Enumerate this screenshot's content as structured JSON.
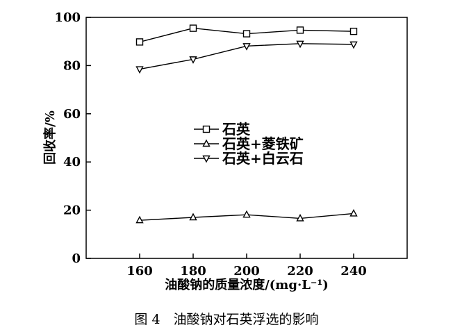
{
  "chart_data": {
    "type": "line",
    "x": [
      160,
      180,
      200,
      220,
      240
    ],
    "xlim": [
      140,
      260
    ],
    "ylim": [
      0,
      100
    ],
    "xticks": [
      160,
      180,
      200,
      220,
      240
    ],
    "yticks": [
      0,
      20,
      40,
      60,
      80,
      100
    ],
    "xlabel": "油酸钠的质量浓度/(mg·L⁻¹)",
    "ylabel": "回收率/%",
    "legend_position": "center",
    "grid": false,
    "series": [
      {
        "name": "石英",
        "marker": "square",
        "values": [
          89.8,
          95.5,
          93.2,
          94.7,
          94.2
        ]
      },
      {
        "name": "石英+菱铁矿",
        "marker": "triangle-up",
        "values": [
          15.8,
          17.0,
          18.1,
          16.6,
          18.6
        ]
      },
      {
        "name": "石英+白云石",
        "marker": "triangle-down",
        "values": [
          78.5,
          82.6,
          88.1,
          89.1,
          88.8
        ]
      }
    ]
  },
  "caption": "图 4　油酸钠对石英浮选的影响"
}
